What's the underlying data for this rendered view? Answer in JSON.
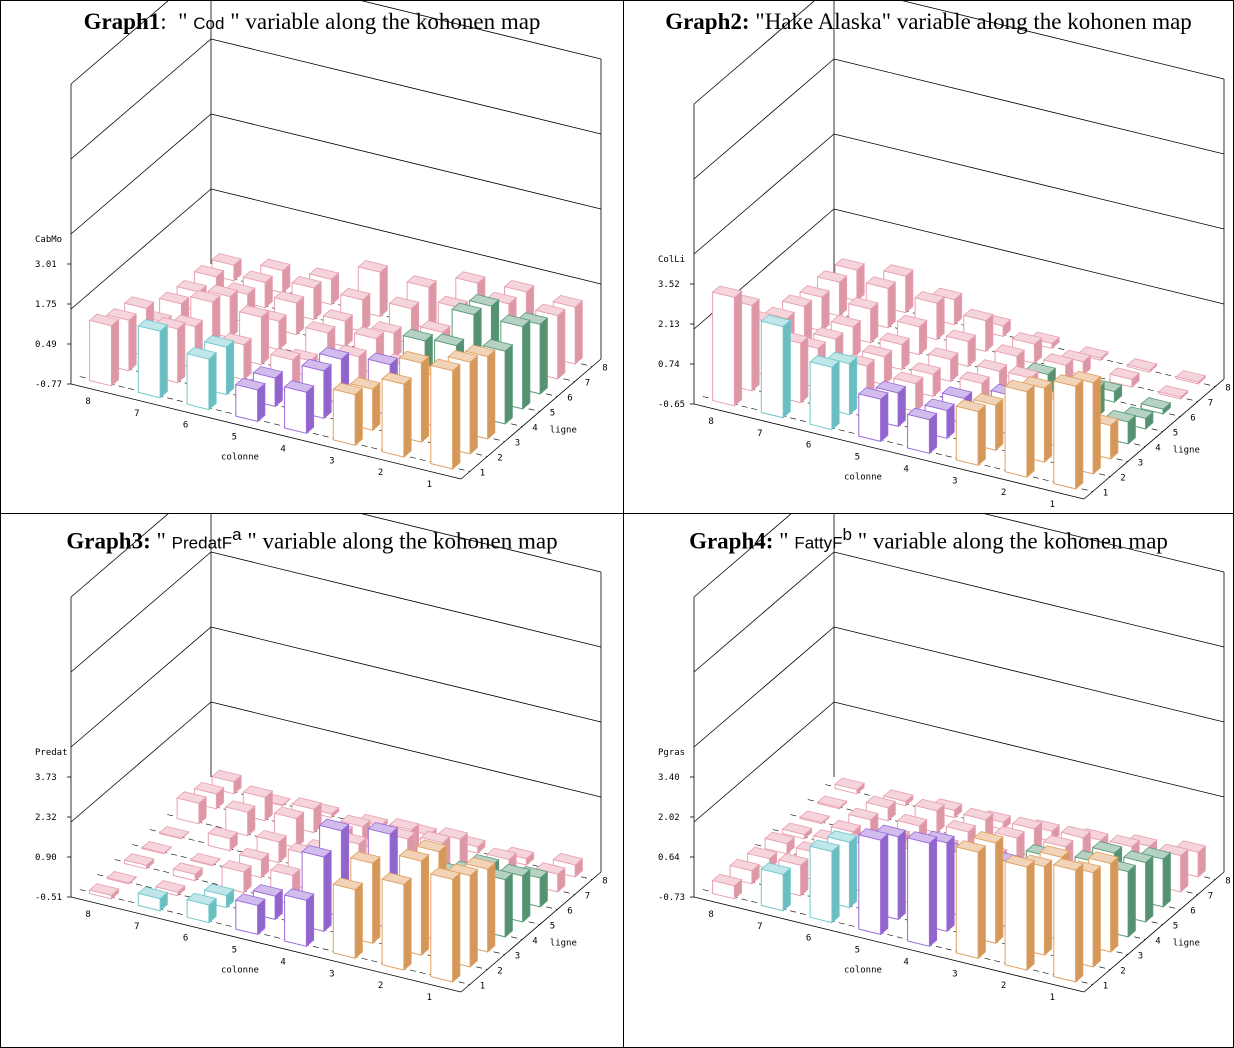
{
  "graphs": [
    {
      "title_bold": "Graph1",
      "title_sep": ":",
      "title_pre": "  \" ",
      "variable": "Cod",
      "title_post": " \" variable along the kohonen map",
      "chart_data": {
        "type": "bar",
        "zlabel": "CabMo",
        "xlabel": "colonne",
        "ylabel": "ligne",
        "z_ticks": [
          "3.01",
          "1.75",
          "0.49",
          "-0.77"
        ],
        "zlim": [
          -0.77,
          3.01
        ],
        "colonne": [
          1,
          2,
          3,
          4,
          5,
          6,
          7,
          8
        ],
        "ligne": [
          1,
          2,
          3,
          4,
          5,
          6,
          7,
          8
        ],
        "values": [
          [
            2.4,
            1.6,
            0.9,
            0.6,
            0.3,
            0.9,
            1.4,
            1.2
          ],
          [
            2.2,
            1.8,
            0.6,
            0.8,
            0.2,
            0.8,
            1.0,
            0.9
          ],
          [
            1.9,
            0.9,
            0.9,
            0.7,
            0.3,
            0.4,
            0.6,
            0.8
          ],
          [
            1.6,
            1.4,
            0.4,
            0.3,
            -0.2,
            0.8,
            0.9,
            -0.1
          ],
          [
            1.9,
            1.9,
            0.7,
            0.4,
            0.2,
            0.2,
            0.6,
            0.0
          ],
          [
            1.5,
            1.7,
            0.5,
            0.1,
            0.1,
            0.3,
            0.2,
            -0.1
          ],
          [
            1.3,
            1.3,
            0.8,
            0.4,
            0.3,
            0.3,
            0.1,
            -0.1
          ],
          [
            1.1,
            1.2,
            1.1,
            0.6,
            0.7,
            0.1,
            0.0,
            -0.2
          ]
        ],
        "clusters": [
          [
            "orange",
            "orange",
            "orange",
            "purple",
            "purple",
            "cyan",
            "cyan",
            "pink"
          ],
          [
            "orange",
            "orange",
            "orange",
            "purple",
            "purple",
            "cyan",
            "pink",
            "pink"
          ],
          [
            "orange",
            "orange",
            "purple",
            "purple",
            "pink",
            "pink",
            "pink",
            "pink"
          ],
          [
            "green",
            "green",
            "pink",
            "pink",
            "pink",
            "pink",
            "pink",
            "pink"
          ],
          [
            "green",
            "green",
            "green",
            "pink",
            "pink",
            "pink",
            "pink",
            "pink"
          ],
          [
            "green",
            "green",
            "pink",
            "pink",
            "pink",
            "pink",
            "pink",
            "pink"
          ],
          [
            "pink",
            "pink",
            "pink",
            "pink",
            "pink",
            "pink",
            "pink",
            "pink"
          ],
          [
            "pink",
            "pink",
            "pink",
            "pink",
            "pink",
            "pink",
            "pink",
            "pink"
          ]
        ]
      }
    },
    {
      "title_bold": "Graph2:",
      "title_sep": "",
      "title_pre": " \"",
      "variable": "Hake Alaska",
      "title_post": "\" variable along the kohonen map",
      "chart_data": {
        "type": "bar",
        "zlabel": "ColLi",
        "xlabel": "colonne",
        "ylabel": "ligne",
        "z_ticks": [
          "3.52",
          "2.13",
          "0.74",
          "-0.65"
        ],
        "zlim": [
          -0.65,
          3.52
        ],
        "colonne": [
          1,
          2,
          3,
          4,
          5,
          6,
          7,
          8
        ],
        "ligne": [
          1,
          2,
          3,
          4,
          5,
          6,
          7,
          8
        ],
        "values": [
          [
            3.0,
            2.4,
            1.3,
            0.6,
            0.9,
            1.6,
            2.6,
            3.2
          ],
          [
            2.6,
            2.0,
            1.0,
            0.4,
            0.6,
            1.2,
            1.5,
            2.4
          ],
          [
            0.6,
            1.0,
            0.8,
            0.3,
            0.4,
            0.6,
            0.8,
            1.3
          ],
          [
            0.2,
            0.6,
            0.9,
            0.3,
            0.2,
            0.4,
            0.6,
            0.9
          ],
          [
            -0.2,
            0.4,
            0.5,
            0.2,
            0.2,
            0.3,
            0.5,
            0.8
          ],
          [
            -0.4,
            -0.2,
            0.3,
            0.2,
            0.3,
            0.4,
            0.6,
            0.6
          ],
          [
            -0.5,
            -0.3,
            -0.1,
            0.1,
            0.5,
            0.7,
            0.8,
            0.6
          ],
          [
            -0.5,
            -0.5,
            -0.5,
            -0.4,
            -0.2,
            0.3,
            0.7,
            0.5
          ]
        ],
        "clusters": [
          [
            "orange",
            "orange",
            "orange",
            "purple",
            "purple",
            "cyan",
            "cyan",
            "pink"
          ],
          [
            "orange",
            "orange",
            "orange",
            "purple",
            "purple",
            "cyan",
            "pink",
            "pink"
          ],
          [
            "orange",
            "orange",
            "purple",
            "purple",
            "pink",
            "pink",
            "pink",
            "pink"
          ],
          [
            "green",
            "green",
            "pink",
            "pink",
            "pink",
            "pink",
            "pink",
            "pink"
          ],
          [
            "green",
            "green",
            "green",
            "pink",
            "pink",
            "pink",
            "pink",
            "pink"
          ],
          [
            "green",
            "green",
            "pink",
            "pink",
            "pink",
            "pink",
            "pink",
            "pink"
          ],
          [
            "pink",
            "pink",
            "pink",
            "pink",
            "pink",
            "pink",
            "pink",
            "pink"
          ],
          [
            "pink",
            "pink",
            "pink",
            "pink",
            "pink",
            "pink",
            "pink",
            "pink"
          ]
        ]
      }
    },
    {
      "title_bold": "Graph3:",
      "title_sep": "",
      "title_pre": " \" ",
      "variable": "PredatF",
      "variable_sup": "a",
      "title_post": " \" variable along the kohonen map",
      "chart_data": {
        "type": "bar",
        "zlabel": "Predat",
        "xlabel": "colonne",
        "ylabel": "ligne",
        "z_ticks": [
          "3.73",
          "2.32",
          "0.90",
          "-0.51"
        ],
        "zlim": [
          -0.51,
          3.73
        ],
        "colonne": [
          1,
          2,
          3,
          4,
          5,
          6,
          7,
          8
        ],
        "ligne": [
          1,
          2,
          3,
          4,
          5,
          6,
          7,
          8
        ],
        "values": [
          [
            3.2,
            2.6,
            2.0,
            1.2,
            0.6,
            0.2,
            0.0,
            -0.3
          ],
          [
            2.8,
            2.9,
            2.4,
            2.2,
            0.4,
            0.0,
            -0.3,
            -0.4
          ],
          [
            2.5,
            2.7,
            2.9,
            2.6,
            0.6,
            0.3,
            -0.2,
            -0.3
          ],
          [
            1.6,
            1.4,
            2.2,
            1.6,
            0.8,
            0.2,
            -0.4,
            -0.4
          ],
          [
            1.2,
            0.9,
            0.8,
            0.9,
            0.4,
            0.3,
            0.0,
            -0.4
          ],
          [
            0.6,
            0.6,
            1.0,
            0.7,
            0.5,
            0.6,
            0.4,
            0.3
          ],
          [
            0.2,
            0.3,
            0.6,
            0.5,
            0.2,
            0.4,
            0.4,
            0.1
          ],
          [
            0.0,
            -0.2,
            -0.2,
            -0.2,
            -0.3,
            -0.3,
            -0.4,
            0.0
          ]
        ],
        "clusters": [
          [
            "orange",
            "orange",
            "orange",
            "purple",
            "purple",
            "cyan",
            "cyan",
            "pink"
          ],
          [
            "orange",
            "orange",
            "orange",
            "purple",
            "purple",
            "cyan",
            "pink",
            "pink"
          ],
          [
            "orange",
            "orange",
            "purple",
            "purple",
            "pink",
            "pink",
            "pink",
            "pink"
          ],
          [
            "green",
            "green",
            "pink",
            "pink",
            "pink",
            "pink",
            "pink",
            "pink"
          ],
          [
            "green",
            "green",
            "green",
            "pink",
            "pink",
            "pink",
            "pink",
            "pink"
          ],
          [
            "green",
            "green",
            "pink",
            "pink",
            "pink",
            "pink",
            "pink",
            "pink"
          ],
          [
            "pink",
            "pink",
            "pink",
            "pink",
            "pink",
            "pink",
            "pink",
            "pink"
          ],
          [
            "pink",
            "pink",
            "pink",
            "pink",
            "pink",
            "pink",
            "pink",
            "pink"
          ]
        ]
      }
    },
    {
      "title_bold": "Graph4:",
      "title_sep": "",
      "title_pre": " \" ",
      "variable": "FattyF",
      "variable_sup": "b",
      "title_post": " \" variable along the kohonen map",
      "chart_data": {
        "type": "bar",
        "zlabel": "Pgras",
        "xlabel": "colonne",
        "ylabel": "ligne",
        "z_ticks": [
          "3.40",
          "2.02",
          "0.64",
          "-0.73"
        ],
        "zlim": [
          -0.73,
          3.4
        ],
        "colonne": [
          1,
          2,
          3,
          4,
          5,
          6,
          7,
          8
        ],
        "ligne": [
          1,
          2,
          3,
          4,
          5,
          6,
          7,
          8
        ],
        "values": [
          [
            3.2,
            2.9,
            3.0,
            2.9,
            2.6,
            1.8,
            0.6,
            -0.2
          ],
          [
            2.6,
            2.4,
            2.8,
            2.4,
            2.2,
            1.6,
            0.4,
            -0.2
          ],
          [
            2.4,
            2.2,
            1.6,
            1.5,
            1.2,
            1.0,
            0.3,
            -0.3
          ],
          [
            1.6,
            1.2,
            0.9,
            0.8,
            0.7,
            0.5,
            0.2,
            -0.3
          ],
          [
            1.4,
            1.0,
            0.8,
            0.4,
            0.3,
            0.2,
            0.0,
            -0.5
          ],
          [
            1.0,
            0.8,
            0.6,
            0.5,
            0.3,
            0.1,
            -0.1,
            -0.6
          ],
          [
            0.6,
            0.5,
            0.4,
            0.3,
            0.2,
            0.1,
            -0.2,
            -0.6
          ],
          [
            0.2,
            0.0,
            -0.2,
            -0.3,
            -0.4,
            -0.4,
            -0.5,
            -0.5
          ]
        ],
        "clusters": [
          [
            "orange",
            "orange",
            "orange",
            "purple",
            "purple",
            "cyan",
            "cyan",
            "pink"
          ],
          [
            "orange",
            "orange",
            "orange",
            "purple",
            "purple",
            "cyan",
            "pink",
            "pink"
          ],
          [
            "orange",
            "orange",
            "purple",
            "purple",
            "pink",
            "pink",
            "pink",
            "pink"
          ],
          [
            "green",
            "green",
            "pink",
            "pink",
            "pink",
            "pink",
            "pink",
            "pink"
          ],
          [
            "green",
            "green",
            "green",
            "pink",
            "pink",
            "pink",
            "pink",
            "pink"
          ],
          [
            "green",
            "green",
            "pink",
            "pink",
            "pink",
            "pink",
            "pink",
            "pink"
          ],
          [
            "pink",
            "pink",
            "pink",
            "pink",
            "pink",
            "pink",
            "pink",
            "pink"
          ],
          [
            "pink",
            "pink",
            "pink",
            "pink",
            "pink",
            "pink",
            "pink",
            "pink"
          ]
        ]
      }
    }
  ],
  "cluster_colors": {
    "pink": "#e8a0b0",
    "green": "#5a9a78",
    "purple": "#9a6ad8",
    "orange": "#e0a060",
    "cyan": "#70c8cc"
  }
}
